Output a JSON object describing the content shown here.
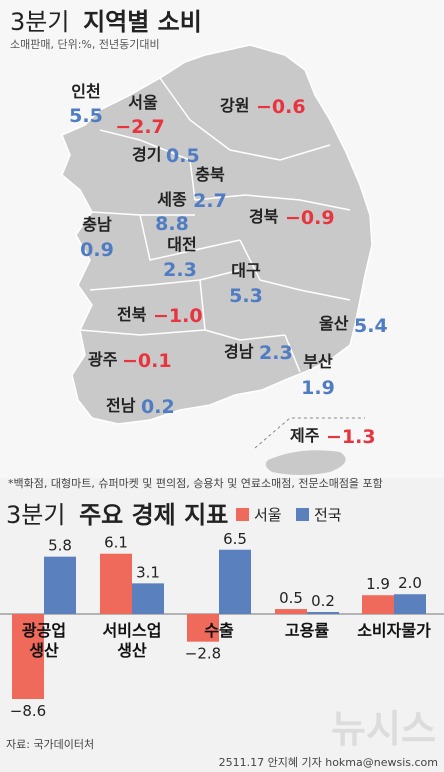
{
  "map_section": {
    "title_light": "3분기",
    "title_bold": "지역별 소비",
    "subtitle": "소매판매, 단위:%, 전년동기대비",
    "footnote": "*백화점, 대형마트, 슈퍼마켓 및 편의점, 승용차 및 연료소매점, 전문소매점을 포함",
    "colors": {
      "positive": "#4f7cc2",
      "negative": "#e8343f"
    }
  },
  "chart_section": {
    "title_light": "3분기",
    "title_bold": "주요 경제 지표",
    "legend": [
      {
        "name": "서울",
        "color": "#ef6a5b"
      },
      {
        "name": "전국",
        "color": "#5b80be"
      }
    ],
    "source": "자료: 국가데이터처",
    "credit": "2511.17 안지혜 기자 hokma@newsis.com",
    "watermark": "뉴시스"
  },
  "chart_data": [
    {
      "type": "map",
      "title": "3분기 지역별 소비",
      "subtitle": "소매판매, 단위:%, 전년동기대비",
      "regions": [
        {
          "name": "인천",
          "value": "5.5"
        },
        {
          "name": "서울",
          "value": "-2.7"
        },
        {
          "name": "강원",
          "value": "-0.6"
        },
        {
          "name": "경기",
          "value": "0.5"
        },
        {
          "name": "충북",
          "value": "2.7"
        },
        {
          "name": "세종",
          "value": "8.8"
        },
        {
          "name": "충남",
          "value": "0.9"
        },
        {
          "name": "대전",
          "value": "2.3"
        },
        {
          "name": "경북",
          "value": "-0.9"
        },
        {
          "name": "대구",
          "value": "5.3"
        },
        {
          "name": "전북",
          "value": "-1.0"
        },
        {
          "name": "울산",
          "value": "5.4"
        },
        {
          "name": "광주",
          "value": "-0.1"
        },
        {
          "name": "경남",
          "value": "2.3"
        },
        {
          "name": "부산",
          "value": "1.9"
        },
        {
          "name": "전남",
          "value": "0.2"
        },
        {
          "name": "제주",
          "value": "-1.3"
        }
      ]
    },
    {
      "type": "bar",
      "title": "3분기 주요 경제 지표",
      "categories": [
        {
          "line1": "광공업",
          "line2": "생산"
        },
        {
          "line1": "서비스업",
          "line2": "생산"
        },
        {
          "line1": "수출",
          "line2": ""
        },
        {
          "line1": "고용률",
          "line2": ""
        },
        {
          "line1": "소비자물가",
          "line2": ""
        }
      ],
      "series": [
        {
          "name": "서울",
          "values": [
            -8.6,
            6.1,
            -2.8,
            0.5,
            1.9
          ]
        },
        {
          "name": "전국",
          "values": [
            5.8,
            3.1,
            6.5,
            0.2,
            2.0
          ]
        }
      ]
    }
  ]
}
